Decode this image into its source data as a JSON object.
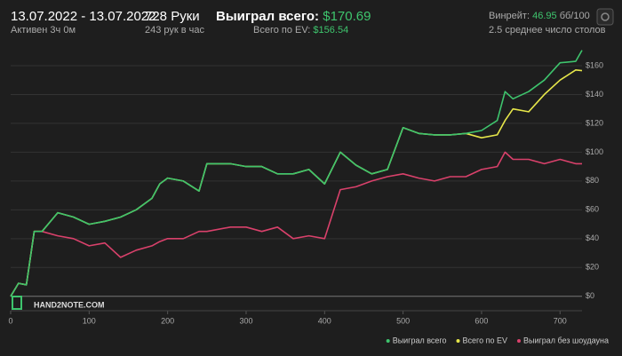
{
  "header": {
    "date_range": "13.07.2022 - 13.07.2022",
    "active_time": "Активен 3ч 0м",
    "hands": "728 Руки",
    "hands_per_hour": "243 рук в час",
    "won_total_label": "Выиграл всего:",
    "won_total_value": "$170.69",
    "ev_label": "Всего по EV:",
    "ev_value": "$156.54",
    "winrate_label": "Винрейт:",
    "winrate_value": "46.95",
    "winrate_unit": "бб/100",
    "tables": "2.5 среднее число столов",
    "logo": "HAND2NOTE.COM"
  },
  "chart_data": {
    "type": "line",
    "x": [
      0,
      10,
      20,
      30,
      40,
      60,
      80,
      100,
      120,
      140,
      160,
      180,
      190,
      200,
      220,
      240,
      250,
      280,
      300,
      320,
      340,
      360,
      380,
      400,
      420,
      440,
      460,
      480,
      500,
      520,
      540,
      560,
      580,
      600,
      620,
      630,
      640,
      660,
      680,
      700,
      720,
      728
    ],
    "series": [
      {
        "name": "Выиграл всего",
        "color": "#3ec46d",
        "values": [
          0,
          9,
          8,
          45,
          45,
          58,
          55,
          50,
          52,
          55,
          60,
          68,
          78,
          82,
          80,
          73,
          92,
          92,
          90,
          90,
          85,
          85,
          88,
          78,
          100,
          91,
          85,
          88,
          117,
          113,
          112,
          112,
          113,
          115,
          122,
          142,
          137,
          142,
          150,
          162,
          163,
          170.69
        ]
      },
      {
        "name": "Всего по EV",
        "color": "#e6e64a",
        "values": [
          0,
          9,
          8,
          45,
          45,
          58,
          55,
          50,
          52,
          55,
          60,
          68,
          78,
          82,
          80,
          73,
          92,
          92,
          90,
          90,
          85,
          85,
          88,
          78,
          100,
          91,
          85,
          88,
          117,
          113,
          112,
          112,
          113,
          110,
          112,
          122,
          130,
          128,
          140,
          150,
          157,
          156.54
        ]
      },
      {
        "name": "Выиграл без шоудауна",
        "color": "#d9416b",
        "values": [
          0,
          9,
          8,
          45,
          45,
          42,
          40,
          35,
          37,
          27,
          32,
          35,
          38,
          40,
          40,
          45,
          45,
          48,
          48,
          45,
          48,
          40,
          42,
          40,
          74,
          76,
          80,
          83,
          85,
          82,
          80,
          83,
          83,
          88,
          90,
          100,
          95,
          95,
          92,
          95,
          92,
          92
        ]
      }
    ],
    "xlim": [
      0,
      728
    ],
    "ylim": [
      -10,
      180
    ],
    "xticks": [
      0,
      100,
      200,
      300,
      400,
      500,
      600,
      700
    ],
    "yticks": [
      {
        "value": 0,
        "label": "$0"
      },
      {
        "value": 20,
        "label": "$20"
      },
      {
        "value": 40,
        "label": "$40"
      },
      {
        "value": 60,
        "label": "$60"
      },
      {
        "value": 80,
        "label": "$80"
      },
      {
        "value": 100,
        "label": "$100"
      },
      {
        "value": 120,
        "label": "$120"
      },
      {
        "value": 140,
        "label": "$140"
      },
      {
        "value": 160,
        "label": "$160"
      }
    ],
    "grid": true,
    "legend": "bottom-right"
  }
}
